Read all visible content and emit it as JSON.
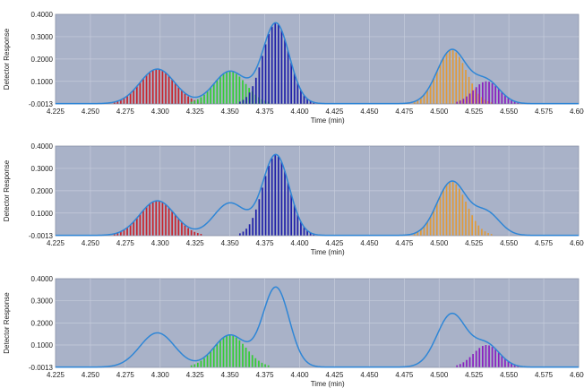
{
  "chart_data": [
    {
      "type": "line",
      "xlabel": "Time (min)",
      "ylabel": "Detector Response",
      "xlim": [
        4.225,
        4.6
      ],
      "ylim": [
        -0.0013,
        0.4
      ],
      "x_ticks": [
        "4.225",
        "4.250",
        "4.275",
        "4.300",
        "4.325",
        "4.350",
        "4.375",
        "4.400",
        "4.425",
        "4.450",
        "4.475",
        "4.500",
        "4.525",
        "4.550",
        "4.575",
        "4.600"
      ],
      "y_ticks": [
        "-0.0013",
        "0.1000",
        "0.2000",
        "0.3000",
        "0.4000"
      ],
      "grid": true,
      "peaks": [
        {
          "center": 4.298,
          "height": 0.155,
          "sigma": 0.0125
        },
        {
          "center": 4.35,
          "height": 0.145,
          "sigma": 0.0115
        },
        {
          "center": 4.383,
          "height": 0.36,
          "sigma": 0.0095
        },
        {
          "center": 4.509,
          "height": 0.24,
          "sigma": 0.0105
        },
        {
          "center": 4.534,
          "height": 0.1,
          "sigma": 0.0095
        }
      ],
      "shaded_peaks": [
        {
          "peak": 0,
          "color": "#c8232c"
        },
        {
          "peak": 1,
          "color": "#33cc33"
        },
        {
          "peak": 2,
          "color": "#1f1fa8"
        },
        {
          "peak": 3,
          "color": "#e09a3a"
        },
        {
          "peak": 4,
          "color": "#8a1fc0"
        }
      ]
    },
    {
      "type": "line",
      "xlabel": "Time (min)",
      "ylabel": "Detector Response",
      "xlim": [
        4.225,
        4.6
      ],
      "ylim": [
        -0.0013,
        0.4
      ],
      "x_ticks": [
        "4.225",
        "4.250",
        "4.275",
        "4.300",
        "4.325",
        "4.350",
        "4.375",
        "4.400",
        "4.425",
        "4.450",
        "4.475",
        "4.500",
        "4.525",
        "4.550",
        "4.575",
        "4.600"
      ],
      "y_ticks": [
        "-0.0013",
        "0.1000",
        "0.2000",
        "0.3000",
        "0.4000"
      ],
      "grid": true,
      "peaks": [
        {
          "center": 4.298,
          "height": 0.155,
          "sigma": 0.0125
        },
        {
          "center": 4.35,
          "height": 0.145,
          "sigma": 0.0115
        },
        {
          "center": 4.383,
          "height": 0.36,
          "sigma": 0.0095
        },
        {
          "center": 4.509,
          "height": 0.24,
          "sigma": 0.0105
        },
        {
          "center": 4.534,
          "height": 0.1,
          "sigma": 0.0095
        }
      ],
      "shaded_peaks": [
        {
          "peak": 0,
          "color": "#c8232c"
        },
        {
          "peak": 2,
          "color": "#1f1fa8"
        },
        {
          "peak": 3,
          "color": "#e09a3a"
        }
      ]
    },
    {
      "type": "line",
      "xlabel": "Time (min)",
      "ylabel": "Detector Response",
      "xlim": [
        4.225,
        4.6
      ],
      "ylim": [
        -0.0013,
        0.4
      ],
      "x_ticks": [
        "4.225",
        "4.250",
        "4.275",
        "4.300",
        "4.325",
        "4.350",
        "4.375",
        "4.400",
        "4.425",
        "4.450",
        "4.475",
        "4.500",
        "4.525",
        "4.550",
        "4.575",
        "4.600"
      ],
      "y_ticks": [
        "-0.0013",
        "0.1000",
        "0.2000",
        "0.3000",
        "0.4000"
      ],
      "grid": true,
      "peaks": [
        {
          "center": 4.298,
          "height": 0.155,
          "sigma": 0.0125
        },
        {
          "center": 4.35,
          "height": 0.145,
          "sigma": 0.0115
        },
        {
          "center": 4.383,
          "height": 0.36,
          "sigma": 0.0095
        },
        {
          "center": 4.509,
          "height": 0.24,
          "sigma": 0.0105
        },
        {
          "center": 4.534,
          "height": 0.1,
          "sigma": 0.0095
        }
      ],
      "shaded_peaks": [
        {
          "peak": 1,
          "color": "#33cc33"
        },
        {
          "peak": 4,
          "color": "#8a1fc0"
        }
      ]
    }
  ],
  "colors": {
    "plot_background": "#a9b2c8",
    "grid": "#c6ccdb",
    "trace": "#2f86d6"
  }
}
